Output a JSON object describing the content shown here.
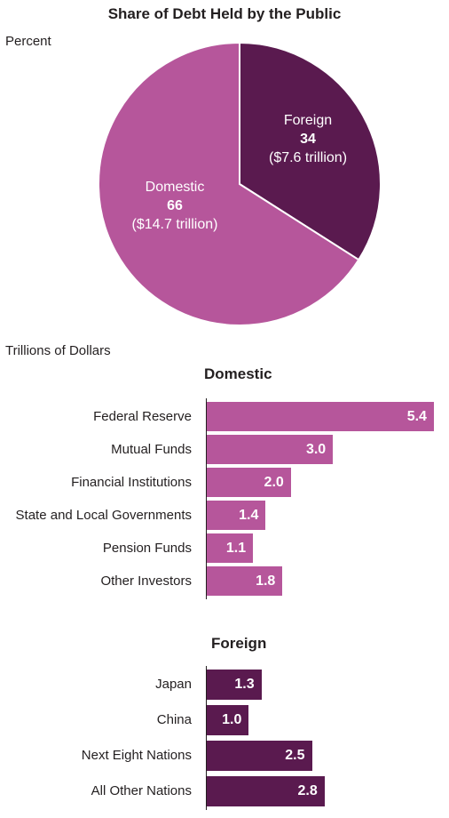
{
  "title": "Share of Debt Held by the Public",
  "colors": {
    "domestic": "#b6569b",
    "foreign": "#5a1a4f",
    "label_text": "#ffffff"
  },
  "chart_data": [
    {
      "type": "pie",
      "title": "Share of Debt Held by the Public",
      "unit": "Percent",
      "slices": [
        {
          "name": "Foreign",
          "value": 34,
          "value_label": "34",
          "amount": "($7.6 trillion)",
          "color": "#5a1a4f"
        },
        {
          "name": "Domestic",
          "value": 66,
          "value_label": "66",
          "amount": "($14.7 trillion)",
          "color": "#b6569b"
        }
      ]
    },
    {
      "type": "bar",
      "orientation": "horizontal",
      "unit": "Trillions of Dollars",
      "title": "Domestic",
      "color": "#b6569b",
      "categories": [
        "Federal Reserve",
        "Mutual Funds",
        "Financial Institutions",
        "State and Local Governments",
        "Pension Funds",
        "Other Investors"
      ],
      "values": [
        5.4,
        3.0,
        2.0,
        1.4,
        1.1,
        1.8
      ],
      "value_labels": [
        "5.4",
        "3.0",
        "2.0",
        "1.4",
        "1.1",
        "1.8"
      ]
    },
    {
      "type": "bar",
      "orientation": "horizontal",
      "title": "Foreign",
      "color": "#5a1a4f",
      "categories": [
        "Japan",
        "China",
        "Next Eight Nations",
        "All Other Nations"
      ],
      "values": [
        1.3,
        1.0,
        2.5,
        2.8
      ],
      "value_labels": [
        "1.3",
        "1.0",
        "2.5",
        "2.8"
      ]
    }
  ]
}
